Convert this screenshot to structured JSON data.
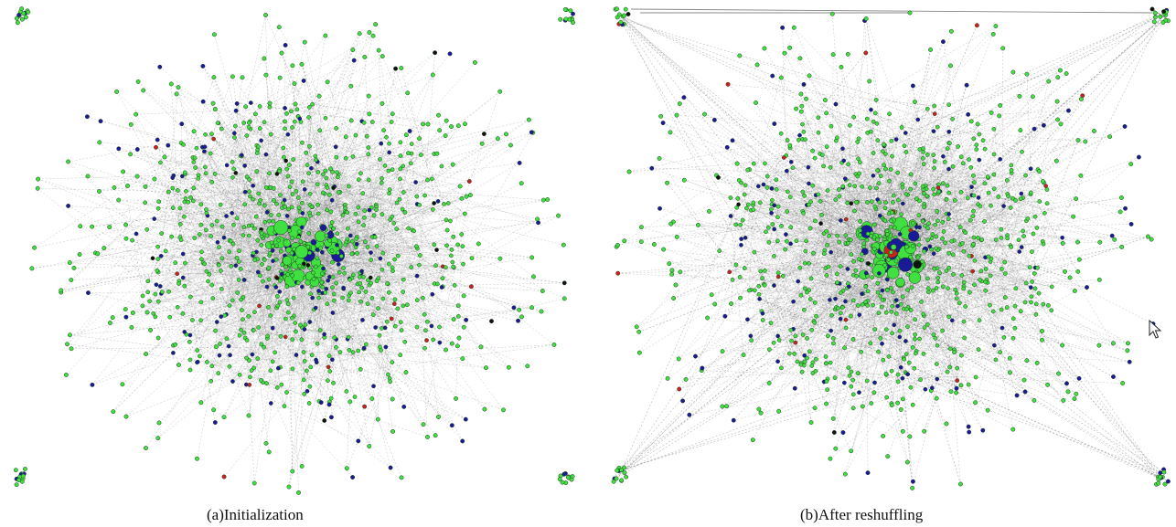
{
  "captions": {
    "a": "(a)Initialization",
    "b": "(b)After reshuffling"
  },
  "palette": {
    "node_primary": "#3fe03f",
    "node_secondary": "#1a1a99",
    "node_rare": "#cc2020",
    "node_black": "#111111",
    "node_stroke": "#1d3a1d",
    "edge": "#555555"
  },
  "icons": {
    "cursor": "mouse-pointer-icon"
  }
}
